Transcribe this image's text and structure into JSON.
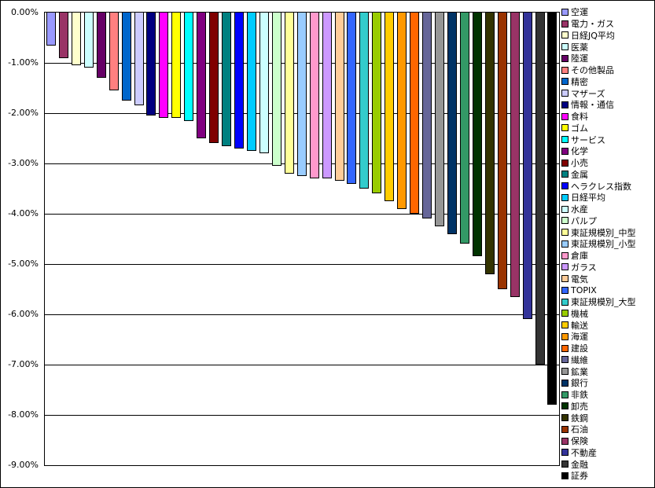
{
  "chart_data": {
    "type": "bar",
    "title": "",
    "xlabel": "",
    "ylabel": "",
    "ylim": [
      -9,
      0
    ],
    "grid": true,
    "legend_position": "right",
    "ytick_labels": [
      "0.00%",
      "-1.00%",
      "-2.00%",
      "-3.00%",
      "-4.00%",
      "-5.00%",
      "-6.00%",
      "-7.00%",
      "-8.00%",
      "-9.00%"
    ],
    "series": [
      {
        "name": "空運",
        "value": -0.65,
        "color": "#9999FF"
      },
      {
        "name": "電力・ガス",
        "value": -0.9,
        "color": "#993366"
      },
      {
        "name": "日経JQ平均",
        "value": -1.05,
        "color": "#FFFFCC"
      },
      {
        "name": "医薬",
        "value": -1.1,
        "color": "#CCFFFF"
      },
      {
        "name": "陸運",
        "value": -1.3,
        "color": "#660066"
      },
      {
        "name": "その他製品",
        "value": -1.55,
        "color": "#FF8080"
      },
      {
        "name": "精密",
        "value": -1.75,
        "color": "#0066CC"
      },
      {
        "name": "マザーズ",
        "value": -1.85,
        "color": "#CCCCFF"
      },
      {
        "name": "情報・通信",
        "value": -2.05,
        "color": "#000080"
      },
      {
        "name": "食料",
        "value": -2.1,
        "color": "#FF00FF"
      },
      {
        "name": "ゴム",
        "value": -2.1,
        "color": "#FFFF00"
      },
      {
        "name": "サービス",
        "value": -2.15,
        "color": "#00FFFF"
      },
      {
        "name": "化学",
        "value": -2.5,
        "color": "#800080"
      },
      {
        "name": "小売",
        "value": -2.6,
        "color": "#800000"
      },
      {
        "name": "金属",
        "value": -2.65,
        "color": "#008080"
      },
      {
        "name": "ヘラクレス指数",
        "value": -2.7,
        "color": "#0000FF"
      },
      {
        "name": "日経平均",
        "value": -2.75,
        "color": "#00CCFF"
      },
      {
        "name": "水産",
        "value": -2.8,
        "color": "#CCFFFF"
      },
      {
        "name": "パルプ",
        "value": -3.05,
        "color": "#CCFFCC"
      },
      {
        "name": "東証規模別_中型",
        "value": -3.2,
        "color": "#FFFF99"
      },
      {
        "name": "東証規模別_小型",
        "value": -3.25,
        "color": "#99CCFF"
      },
      {
        "name": "倉庫",
        "value": -3.3,
        "color": "#FF99CC"
      },
      {
        "name": "ガラス",
        "value": -3.3,
        "color": "#CC99FF"
      },
      {
        "name": "電気",
        "value": -3.35,
        "color": "#FFCC99"
      },
      {
        "name": "TOPIX",
        "value": -3.4,
        "color": "#3366FF"
      },
      {
        "name": "東証規模別_大型",
        "value": -3.5,
        "color": "#33CCCC"
      },
      {
        "name": "機械",
        "value": -3.6,
        "color": "#99CC00"
      },
      {
        "name": "輸送",
        "value": -3.75,
        "color": "#FFCC00"
      },
      {
        "name": "海運",
        "value": -3.9,
        "color": "#FF9900"
      },
      {
        "name": "建設",
        "value": -4.0,
        "color": "#FF6600"
      },
      {
        "name": "繊維",
        "value": -4.1,
        "color": "#666699"
      },
      {
        "name": "鉱業",
        "value": -4.25,
        "color": "#969696"
      },
      {
        "name": "銀行",
        "value": -4.4,
        "color": "#003366"
      },
      {
        "name": "非鉄",
        "value": -4.6,
        "color": "#339966"
      },
      {
        "name": "卸売",
        "value": -4.85,
        "color": "#003300"
      },
      {
        "name": "鉄鋼",
        "value": -5.2,
        "color": "#333300"
      },
      {
        "name": "石油",
        "value": -5.5,
        "color": "#993300"
      },
      {
        "name": "保険",
        "value": -5.65,
        "color": "#993366"
      },
      {
        "name": "不動産",
        "value": -6.1,
        "color": "#333399"
      },
      {
        "name": "金融",
        "value": -7.0,
        "color": "#333333"
      },
      {
        "name": "証券",
        "value": -7.8,
        "color": "#000000"
      }
    ]
  }
}
